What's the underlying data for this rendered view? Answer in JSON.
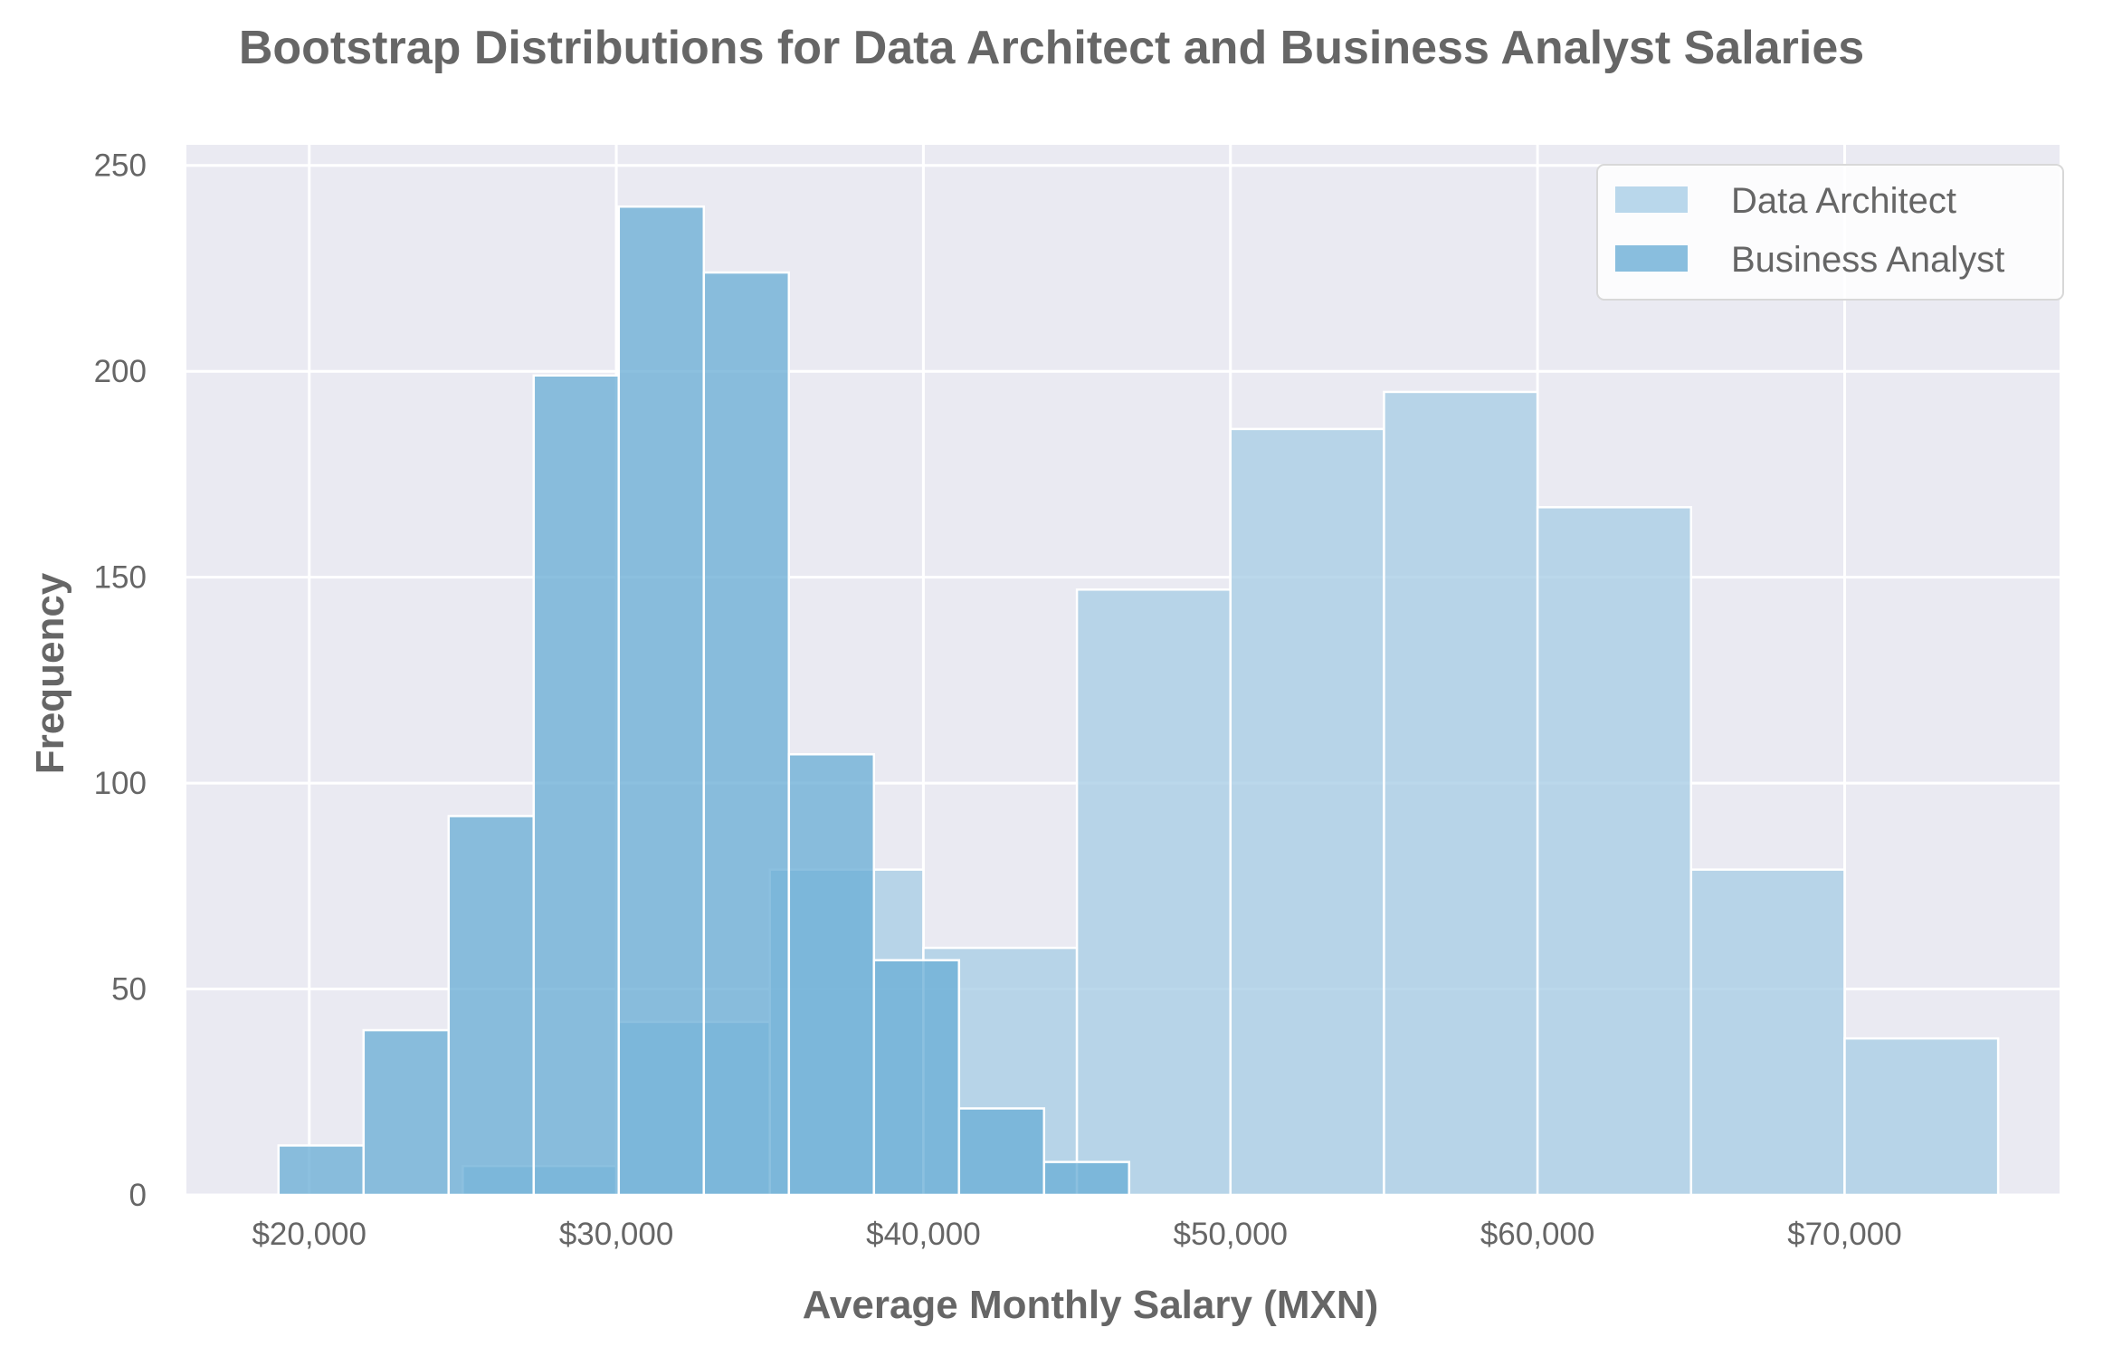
{
  "chart_data": {
    "type": "bar",
    "title": "Bootstrap Distributions for Data Architect and Business Analyst Salaries",
    "xlabel": "Average Monthly Salary (MXN)",
    "ylabel": "Frequency",
    "xlim": [
      16000,
      77000
    ],
    "ylim": [
      0,
      255
    ],
    "x_ticks": [
      20000,
      30000,
      40000,
      50000,
      60000,
      70000
    ],
    "x_tick_labels": [
      "$20,000",
      "$30,000",
      "$40,000",
      "$50,000",
      "$60,000",
      "$70,000"
    ],
    "y_ticks": [
      0,
      50,
      100,
      150,
      200,
      250
    ],
    "y_tick_labels": [
      "0",
      "50",
      "100",
      "150",
      "200",
      "250"
    ],
    "grid": true,
    "legend_position": "top-right",
    "series": [
      {
        "name": "Data Architect",
        "color": "#a8cde6",
        "bins": [
          {
            "x0": 25000,
            "x1": 30000,
            "count": 7
          },
          {
            "x0": 30000,
            "x1": 35000,
            "count": 42
          },
          {
            "x0": 35000,
            "x1": 40000,
            "count": 79
          },
          {
            "x0": 40000,
            "x1": 45000,
            "count": 60
          },
          {
            "x0": 45000,
            "x1": 50000,
            "count": 147
          },
          {
            "x0": 50000,
            "x1": 55000,
            "count": 186
          },
          {
            "x0": 55000,
            "x1": 60000,
            "count": 195
          },
          {
            "x0": 60000,
            "x1": 65000,
            "count": 167
          },
          {
            "x0": 65000,
            "x1": 70000,
            "count": 79
          },
          {
            "x0": 70000,
            "x1": 75000,
            "count": 38
          }
        ]
      },
      {
        "name": "Business Analyst",
        "color": "#6baed6",
        "bins": [
          {
            "x0": 19000,
            "x1": 21770,
            "count": 12
          },
          {
            "x0": 21770,
            "x1": 24540,
            "count": 40
          },
          {
            "x0": 24540,
            "x1": 27310,
            "count": 92
          },
          {
            "x0": 27310,
            "x1": 30080,
            "count": 199
          },
          {
            "x0": 30080,
            "x1": 32850,
            "count": 240
          },
          {
            "x0": 32850,
            "x1": 35620,
            "count": 224
          },
          {
            "x0": 35620,
            "x1": 38390,
            "count": 107
          },
          {
            "x0": 38390,
            "x1": 41160,
            "count": 57
          },
          {
            "x0": 41160,
            "x1": 43930,
            "count": 21
          },
          {
            "x0": 43930,
            "x1": 46700,
            "count": 8
          }
        ]
      }
    ]
  }
}
